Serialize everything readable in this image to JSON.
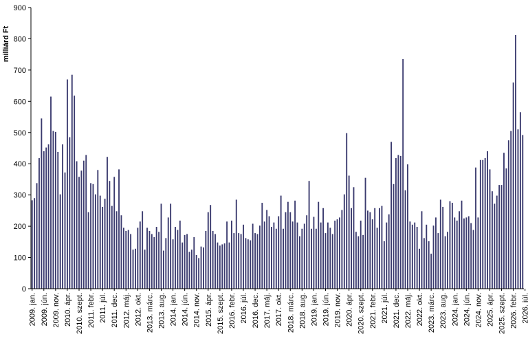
{
  "chart_data": {
    "type": "bar",
    "ylabel": "milliárd Ft",
    "ylim": [
      0,
      900
    ],
    "yticks": [
      0,
      100,
      200,
      300,
      400,
      500,
      600,
      700,
      800,
      900
    ],
    "grid": false,
    "bar_color": "#3a3a6e",
    "xtick_labels": [
      "2009. jan.",
      "2009. jún.",
      "2009. nov.",
      "2010. ápr.",
      "2010. szept.",
      "2011. febr.",
      "2011. júl.",
      "2011. dec.",
      "2012. máj.",
      "2012. okt.",
      "2013. márc.",
      "2013. aug.",
      "2014. jan.",
      "2014. jún.",
      "2014. nov.",
      "2015. ápr.",
      "2015. szept.",
      "2016. febr.",
      "2016. júl.",
      "2016. dec.",
      "2017. máj.",
      "2017. okt.",
      "2018. márc.",
      "2018. aug.",
      "2019. jan.",
      "2019. jún.",
      "2019. nov.",
      "2020. ápr.",
      "2020. szept.",
      "2021. febr.",
      "2021. júl.",
      "2021. dec.",
      "2022. máj.",
      "2022. okt.",
      "2023. márc.",
      "2023. aug.",
      "2024. jan.",
      "2024. jún.",
      "2024. nov.",
      "2025. ápr.",
      "2025. szept.",
      "2026. febr.",
      "2026. júl."
    ],
    "values": [
      283,
      290,
      338,
      418,
      545,
      440,
      452,
      462,
      615,
      505,
      502,
      438,
      302,
      462,
      372,
      670,
      485,
      685,
      618,
      408,
      358,
      378,
      410,
      428,
      245,
      338,
      335,
      302,
      380,
      298,
      262,
      288,
      422,
      345,
      265,
      358,
      248,
      382,
      235,
      195,
      185,
      188,
      175,
      125,
      128,
      195,
      215,
      248,
      125,
      195,
      185,
      175,
      165,
      198,
      182,
      272,
      122,
      162,
      228,
      272,
      158,
      198,
      188,
      218,
      148,
      172,
      175,
      118,
      125,
      165,
      108,
      98,
      135,
      132,
      185,
      245,
      268,
      185,
      175,
      148,
      138,
      142,
      145,
      215,
      148,
      218,
      178,
      285,
      178,
      175,
      205,
      162,
      158,
      155,
      208,
      178,
      175,
      202,
      275,
      215,
      252,
      232,
      198,
      212,
      192,
      232,
      298,
      192,
      245,
      278,
      245,
      215,
      282,
      212,
      168,
      192,
      208,
      235,
      345,
      192,
      230,
      192,
      278,
      212,
      258,
      178,
      212,
      195,
      175,
      218,
      222,
      228,
      252,
      302,
      498,
      362,
      258,
      325,
      182,
      168,
      218,
      172,
      355,
      250,
      245,
      222,
      258,
      195,
      258,
      265,
      152,
      212,
      238,
      470,
      335,
      418,
      428,
      425,
      735,
      315,
      398,
      215,
      205,
      212,
      198,
      128,
      248,
      162,
      205,
      152,
      112,
      202,
      228,
      178,
      285,
      262,
      168,
      182,
      280,
      275,
      228,
      218,
      248,
      282,
      225,
      228,
      232,
      210,
      188,
      388,
      228,
      412,
      412,
      418,
      440,
      382,
      312,
      272,
      298,
      332,
      332,
      435,
      385,
      475,
      505,
      660,
      812,
      510,
      565,
      492
    ]
  }
}
